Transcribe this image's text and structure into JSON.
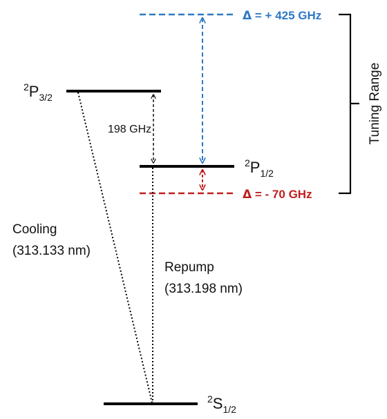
{
  "colors": {
    "level": "#000000",
    "blue_detuning": "#2e78c4",
    "red_detuning": "#c01d1d",
    "text": "#111111"
  },
  "levels": {
    "p32": {
      "base": "P",
      "sup": "2",
      "sub": "3/2"
    },
    "p12": {
      "base": "P",
      "sup": "2",
      "sub": "1/2"
    },
    "s12": {
      "base": "S",
      "sup": "2",
      "sub": "1/2"
    }
  },
  "splitting": {
    "label": "198 GHz"
  },
  "detunings": {
    "blue": {
      "symbol": "Δ",
      "text": " = + 425 GHz"
    },
    "red": {
      "symbol": "Δ",
      "text": " = - 70 GHz"
    }
  },
  "tuning_range": {
    "label": "Tuning Range"
  },
  "transitions": {
    "cooling": {
      "name": "Cooling",
      "wavelength": "(313.133 nm)"
    },
    "repump": {
      "name": "Repump",
      "wavelength": "(313.198 nm)"
    }
  }
}
